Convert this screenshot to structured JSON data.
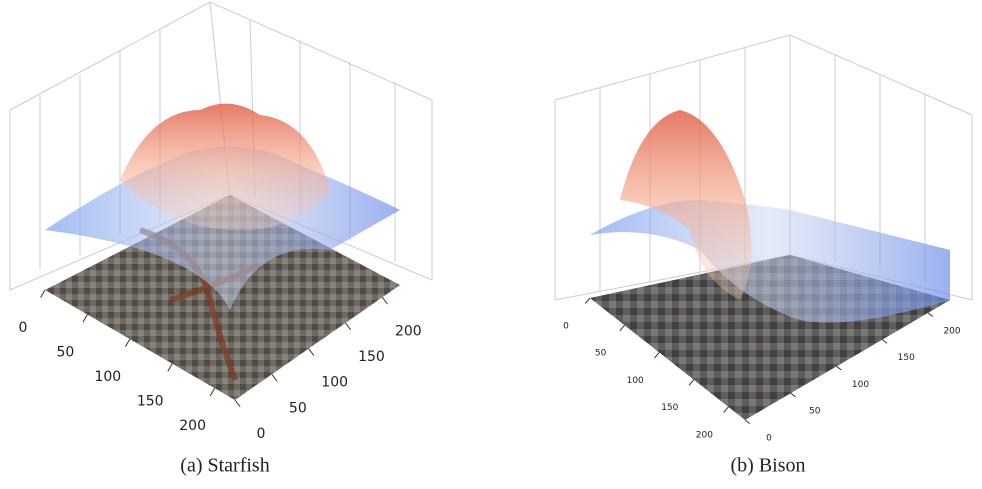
{
  "chart_data": [
    {
      "type": "surface",
      "caption": "(a) Starfish",
      "xlim": [
        0,
        224
      ],
      "ylim": [
        0,
        224
      ],
      "xticks": [
        0,
        50,
        100,
        150,
        200
      ],
      "yticks": [
        0,
        50,
        100,
        150,
        200
      ]
    },
    {
      "type": "surface",
      "caption": "(b) Bison",
      "xlim": [
        0,
        224
      ],
      "ylim": [
        0,
        224
      ],
      "xticks": [
        0,
        50,
        100,
        150,
        200
      ],
      "yticks": [
        0,
        50,
        100,
        150,
        200
      ]
    }
  ]
}
